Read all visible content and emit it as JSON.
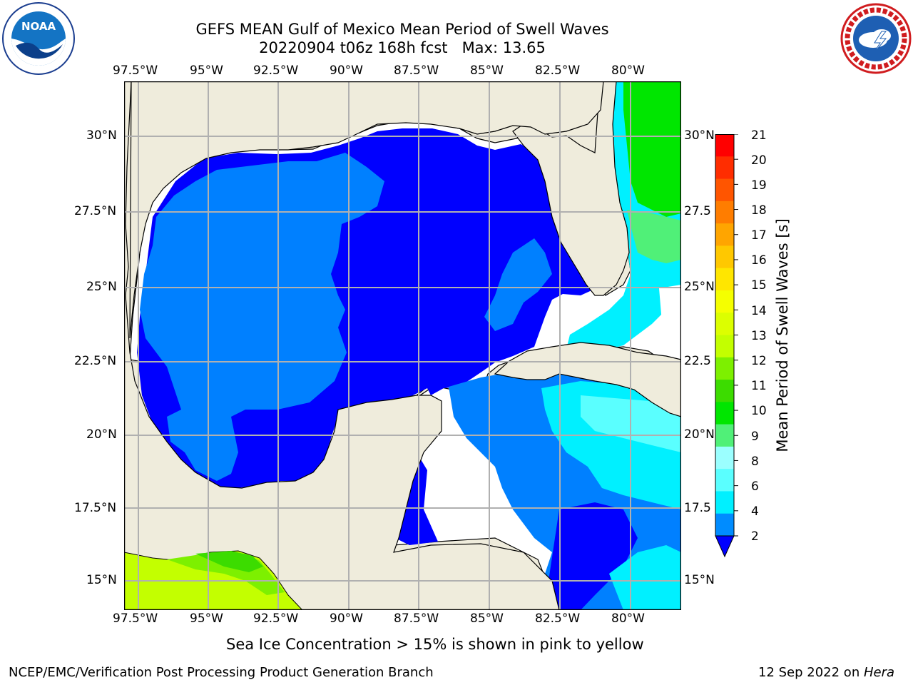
{
  "title": {
    "line1": "GEFS MEAN Gulf of Mexico Mean Period of Swell Waves",
    "line2": "20220904 t06z 168h fcst   Max: 13.65"
  },
  "logos": {
    "left": {
      "icon": "noaa-logo-icon",
      "text": "NOAA"
    },
    "right": {
      "icon": "nws-logo-icon",
      "text": "NATIONAL WEATHER SERVICE"
    }
  },
  "map": {
    "lon_labels": [
      "97.5°W",
      "95°W",
      "92.5°W",
      "90°W",
      "87.5°W",
      "85°W",
      "82.5°W",
      "80°W"
    ],
    "lat_labels": [
      "30°N",
      "27.5°N",
      "25°N",
      "22.5°N",
      "20°N",
      "17.5°N",
      "15°N"
    ],
    "right_lat_labels": [
      "30°N",
      "27.5",
      "25°N",
      "22.5",
      "20°N",
      "17.5",
      "15°N"
    ],
    "land_color": "#efecdc",
    "grid_color": "#b0b0b0"
  },
  "colorbar": {
    "label": "Mean Period of Swell Waves [s]",
    "ticks": [
      "21",
      "20",
      "19",
      "18",
      "17",
      "16",
      "15",
      "14",
      "13",
      "12",
      "11",
      "10",
      "9",
      "8",
      "6",
      "4",
      "2"
    ],
    "colors": [
      "#ff0000",
      "#ff2d00",
      "#ff5500",
      "#ff7d00",
      "#ffa500",
      "#ffc800",
      "#ffe600",
      "#f5ff00",
      "#dcff00",
      "#c3ff00",
      "#7df000",
      "#3cdc00",
      "#00e600",
      "#50f078",
      "#9bffff",
      "#5affff",
      "#00f0ff",
      "#008cff",
      "#0000ff"
    ]
  },
  "note": "Sea Ice Concentration > 15% is shown in pink to yellow",
  "footer": {
    "left": "NCEP/EMC/Verification Post Processing Product Generation Branch",
    "date": "12 Sep 2022 on",
    "host": "Hera"
  }
}
